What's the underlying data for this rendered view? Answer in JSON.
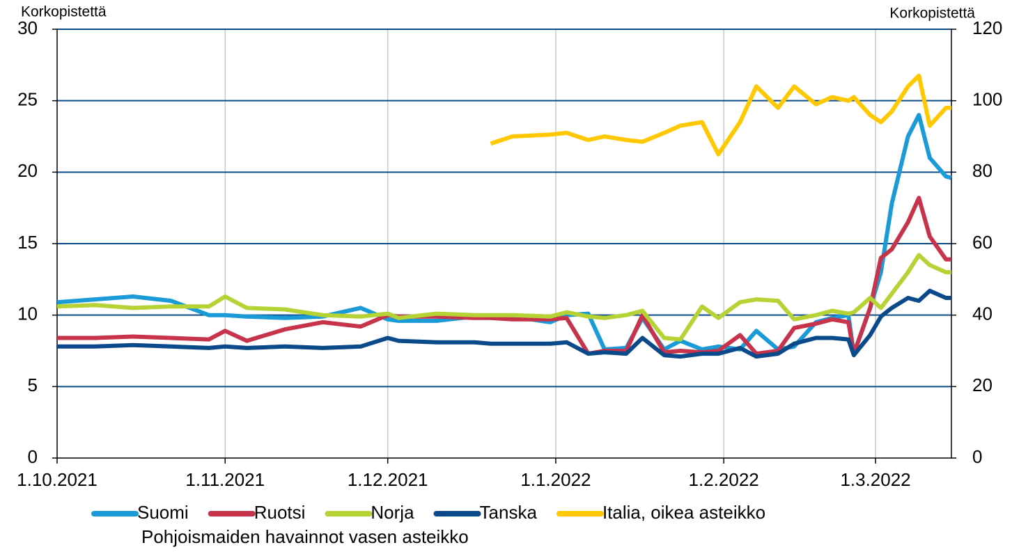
{
  "chart_data": {
    "type": "line",
    "y_label": "Korkopistettä",
    "y2_label": "Korkopistettä",
    "note": "Pohjoismaiden havainnot vasen asteikko",
    "x": [
      "1.10.2021",
      "8.10.2021",
      "15.10.2021",
      "22.10.2021",
      "29.10.2021",
      "1.11.2021",
      "5.11.2021",
      "12.11.2021",
      "19.11.2021",
      "26.11.2021",
      "1.12.2021",
      "3.12.2021",
      "10.12.2021",
      "17.12.2021",
      "20.12.2021",
      "24.12.2021",
      "31.12.2021",
      "3.1.2022",
      "7.1.2022",
      "10.1.2022",
      "14.1.2022",
      "17.1.2022",
      "21.1.2022",
      "24.1.2022",
      "28.1.2022",
      "31.1.2022",
      "4.2.2022",
      "7.2.2022",
      "11.2.2022",
      "14.2.2022",
      "18.2.2022",
      "21.2.2022",
      "24.2.2022",
      "25.2.2022",
      "28.2.2022",
      "2.3.2022",
      "4.3.2022",
      "7.3.2022",
      "9.3.2022",
      "11.3.2022",
      "14.3.2022",
      "15.3.2022"
    ],
    "series": [
      {
        "name": "Suomi",
        "color": "#1a9ad6",
        "values": [
          10.9,
          11.1,
          11.3,
          11.0,
          10.0,
          10.0,
          9.9,
          9.8,
          9.9,
          10.5,
          9.7,
          9.6,
          9.6,
          9.9,
          9.8,
          9.9,
          9.5,
          10.0,
          10.1,
          7.6,
          7.7,
          9.8,
          7.6,
          8.2,
          7.6,
          7.8,
          7.6,
          8.9,
          7.6,
          7.8,
          9.5,
          9.8,
          10.0,
          7.3,
          10.5,
          13,
          17.8,
          22.5,
          24.0,
          21.0,
          19.7,
          19.6
        ]
      },
      {
        "name": "Ruotsi",
        "color": "#c8334c",
        "values": [
          8.4,
          8.4,
          8.5,
          8.4,
          8.3,
          8.9,
          8.2,
          9.0,
          9.5,
          9.2,
          10.0,
          9.9,
          9.9,
          9.8,
          9.8,
          9.7,
          9.7,
          9.8,
          7.3,
          7.5,
          7.5,
          10.0,
          7.4,
          7.5,
          7.4,
          7.5,
          8.6,
          7.3,
          7.5,
          9.1,
          9.4,
          9.7,
          9.5,
          7.3,
          10.5,
          14,
          14.6,
          16.5,
          18.2,
          15.5,
          13.9,
          13.9
        ]
      },
      {
        "name": "Norja",
        "color": "#b5d334",
        "values": [
          10.6,
          10.7,
          10.5,
          10.6,
          10.6,
          11.3,
          10.5,
          10.4,
          10.0,
          9.9,
          10.1,
          9.8,
          10.1,
          10.0,
          10.0,
          10.0,
          9.9,
          10.2,
          9.9,
          9.8,
          10.0,
          10.3,
          8.4,
          8.3,
          10.6,
          9.8,
          10.9,
          11.1,
          11.0,
          9.7,
          10.0,
          10.3,
          10.1,
          10.2,
          11.2,
          10.5,
          11.5,
          13.0,
          14.2,
          13.5,
          13.0,
          13.0
        ]
      },
      {
        "name": "Tanska",
        "color": "#0a4a8a",
        "values": [
          7.8,
          7.8,
          7.9,
          7.8,
          7.7,
          7.8,
          7.7,
          7.8,
          7.7,
          7.8,
          8.4,
          8.2,
          8.1,
          8.1,
          8.0,
          8.0,
          8.0,
          8.1,
          7.3,
          7.4,
          7.3,
          8.4,
          7.2,
          7.1,
          7.3,
          7.3,
          7.7,
          7.1,
          7.3,
          8.0,
          8.4,
          8.4,
          8.3,
          7.2,
          8.6,
          9.9,
          10.5,
          11.2,
          11.0,
          11.7,
          11.2,
          11.2
        ]
      },
      {
        "name": "Italia, oikea asteikko",
        "color": "#ffc800",
        "axis": "y2",
        "values": [
          null,
          null,
          null,
          null,
          null,
          null,
          null,
          null,
          null,
          null,
          null,
          null,
          null,
          null,
          88,
          90,
          90.5,
          91,
          89,
          90,
          89,
          88.5,
          91,
          93,
          94,
          85,
          94,
          104,
          98,
          104,
          99,
          101,
          100,
          101,
          96,
          94,
          97,
          104,
          107,
          93,
          98,
          98
        ]
      }
    ],
    "xlim": [
      "1.10.2021",
      "15.3.2022"
    ],
    "xticks": [
      "1.10.2021",
      "1.11.2021",
      "1.12.2021",
      "1.1.2022",
      "1.2.2022",
      "1.3.2022"
    ],
    "ylim": [
      0,
      30
    ],
    "yticks": [
      0,
      5,
      10,
      15,
      20,
      25,
      30
    ],
    "y2lim": [
      0,
      120
    ],
    "y2ticks": [
      0,
      20,
      40,
      60,
      80,
      100,
      120
    ],
    "grid": true
  }
}
